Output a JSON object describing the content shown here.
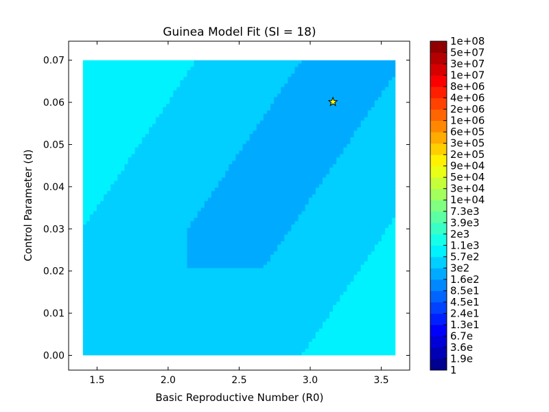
{
  "chart_data": {
    "type": "contour",
    "title": "Guinea Model Fit (SI = 18)",
    "xlabel": "Basic Reproductive Number (R0)",
    "ylabel": "Control Parameter (d)",
    "xlim": [
      1.3,
      3.7
    ],
    "ylim": [
      -0.0035,
      0.0745
    ],
    "data_extent": {
      "x": [
        1.4,
        3.6
      ],
      "y": [
        0.0,
        0.07
      ]
    },
    "x_ticks": [
      1.5,
      2.0,
      2.5,
      3.0,
      3.5
    ],
    "x_tick_labels": [
      "1.5",
      "2.0",
      "2.5",
      "3.0",
      "3.5"
    ],
    "y_ticks": [
      0.0,
      0.01,
      0.02,
      0.03,
      0.04,
      0.05,
      0.06,
      0.07
    ],
    "y_tick_labels": [
      "0.00",
      "0.01",
      "0.02",
      "0.03",
      "0.04",
      "0.05",
      "0.06",
      "0.07"
    ],
    "grid": false,
    "best_fit_marker": {
      "x": 3.16,
      "y": 0.0601,
      "symbol": "star",
      "color": "#ffff00"
    },
    "colorbar": {
      "scale": "log",
      "colormap": "jet",
      "levels": [
        "1",
        "1.9e",
        "3.6e",
        "6.7e",
        "1.3e1",
        "2.4e1",
        "4.5e1",
        "8.5e1",
        "1.6e2",
        "3e2",
        "5.7e2",
        "1.1e3",
        "2e3",
        "3.9e3",
        "7.3e3",
        "1e+04",
        "3e+04",
        "5e+04",
        "9e+04",
        "2e+05",
        "3e+05",
        "6e+05",
        "1e+06",
        "2e+06",
        "4e+06",
        "8e+06",
        "1e+07",
        "3e+07",
        "5e+07",
        "1e+08"
      ]
    },
    "contour_bands": {
      "description": "Misfit level index (0 = lowest) of filled contour bands; valley runs diagonally from lower-left to upper-right",
      "valley_band": 8,
      "background_band": 10,
      "max_band": 27,
      "valley_line": {
        "x1": 1.9,
        "y1": 0.0,
        "x2": 3.3,
        "y2": 0.07
      },
      "valley_inner_segment": {
        "x": [
          2.13,
          3.42
        ],
        "y": [
          0.021,
          0.07
        ]
      }
    }
  }
}
